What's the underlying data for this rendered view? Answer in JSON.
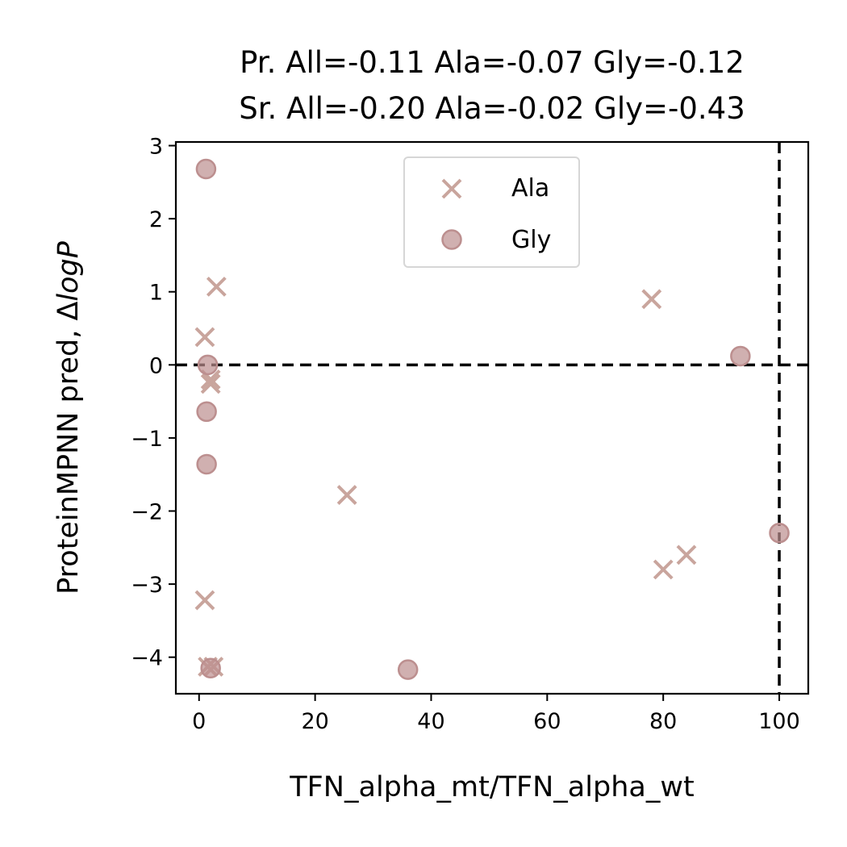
{
  "chart_data": {
    "type": "scatter",
    "title_lines": [
      "Pr. All=-0.11 Ala=-0.07 Gly=-0.12",
      "Sr. All=-0.20 Ala=-0.02 Gly=-0.43"
    ],
    "xlabel": "TFN_alpha_mt/TFN_alpha_wt",
    "ylabel_main": "ProteinMPNN pred, ",
    "ylabel_delta": "Δ",
    "ylabel_italic": "logP",
    "xlim": [
      -4,
      105
    ],
    "ylim": [
      -4.5,
      3.05
    ],
    "xticks": [
      0,
      20,
      40,
      60,
      80,
      100
    ],
    "yticks": [
      3,
      2,
      1,
      0,
      -1,
      -2,
      -3,
      -4
    ],
    "ytick_labels": [
      "3",
      "2",
      "1",
      "0",
      "−1",
      "−2",
      "−3",
      "−4"
    ],
    "grid": false,
    "legend_position": "upper center",
    "reference_lines": {
      "horizontal_y": 0,
      "vertical_x": 100,
      "style": "dashed",
      "color": "#000000"
    },
    "series": [
      {
        "name": "Ala",
        "marker": "x",
        "color": "#c9a59d",
        "points": [
          [
            3,
            1.07
          ],
          [
            1,
            0.38
          ],
          [
            2,
            -0.2
          ],
          [
            2,
            -0.26
          ],
          [
            1,
            -3.22
          ],
          [
            1.5,
            -4.13
          ],
          [
            2.5,
            -4.13
          ],
          [
            25.5,
            -1.78
          ],
          [
            78,
            0.9
          ],
          [
            80,
            -2.8
          ],
          [
            84,
            -2.6
          ]
        ]
      },
      {
        "name": "Gly",
        "marker": "o",
        "color": "#bc8f8f",
        "points": [
          [
            1.2,
            2.68
          ],
          [
            1.5,
            0.0
          ],
          [
            1.3,
            -0.64
          ],
          [
            1.3,
            -1.36
          ],
          [
            2,
            -4.15
          ],
          [
            36,
            -4.17
          ],
          [
            93.3,
            0.12
          ],
          [
            100,
            -2.3
          ]
        ]
      }
    ]
  }
}
